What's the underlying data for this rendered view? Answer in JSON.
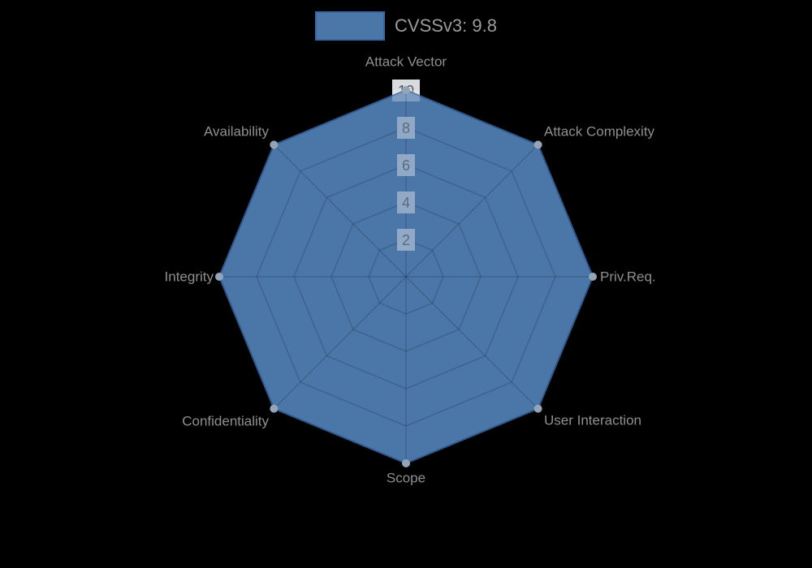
{
  "legend": {
    "label": "CVSSv3: 9.8",
    "swatch_color": "#4a76a8",
    "swatch_border": "#3a67a3",
    "text_color": "#9c9c9c"
  },
  "chart_data": {
    "type": "radar",
    "title": "CVSSv3: 9.8",
    "categories": [
      "Attack Vector",
      "Attack Complexity",
      "Priv.Req.",
      "User Interaction",
      "Scope",
      "Confidentiality",
      "Integrity",
      "Availability"
    ],
    "series": [
      {
        "name": "CVSSv3: 9.8",
        "values": [
          10,
          10,
          10,
          10,
          10,
          10,
          10,
          10
        ]
      }
    ],
    "rlim": [
      0,
      10
    ],
    "ticks": [
      2,
      4,
      6,
      8,
      10
    ],
    "grid": true,
    "legend_position": "top",
    "colors": {
      "background": "#000000",
      "fill": "#4a76a8",
      "border": "#3a67a3",
      "marker": "#93a5b7",
      "grid_line": "rgba(0,0,0,0.16)",
      "axis_label": "#8f8f8f",
      "tick_text_inner": "#5a6a7e",
      "tick_text_outer": "#555555",
      "tick_backdrop_inner": "#91a9c7",
      "tick_backdrop_outer": "#d9dcdf",
      "tip_overlay": "rgba(255,255,255,0.28)"
    }
  }
}
